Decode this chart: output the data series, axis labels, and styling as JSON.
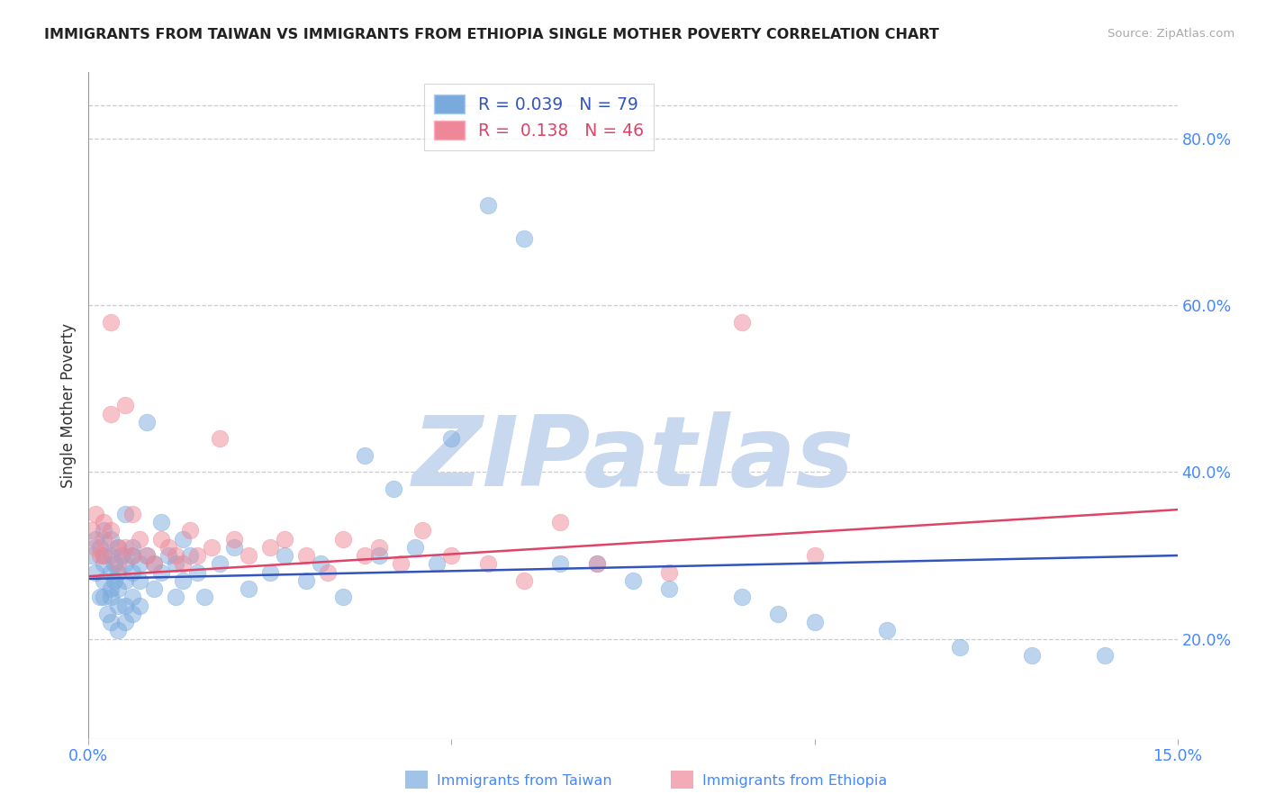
{
  "title": "IMMIGRANTS FROM TAIWAN VS IMMIGRANTS FROM ETHIOPIA SINGLE MOTHER POVERTY CORRELATION CHART",
  "source": "Source: ZipAtlas.com",
  "ylabel": "Single Mother Poverty",
  "legend_label_taiwan": "Immigrants from Taiwan",
  "legend_label_ethiopia": "Immigrants from Ethiopia",
  "r_taiwan": 0.039,
  "n_taiwan": 79,
  "r_ethiopia": 0.138,
  "n_ethiopia": 46,
  "xlim": [
    0.0,
    0.15
  ],
  "ylim": [
    0.08,
    0.88
  ],
  "yticks_right": [
    0.2,
    0.4,
    0.6,
    0.8
  ],
  "ytick_right_labels": [
    "20.0%",
    "40.0%",
    "60.0%",
    "80.0%"
  ],
  "color_taiwan": "#7aaadd",
  "color_ethiopia": "#ee8899",
  "color_taiwan_line": "#3355bb",
  "color_ethiopia_line": "#dd4466",
  "color_axis_labels": "#4488ff",
  "watermark": "ZIPatlas",
  "watermark_color": "#c8d8ee",
  "taiwan_x": [
    0.0005,
    0.001,
    0.001,
    0.0015,
    0.0015,
    0.002,
    0.002,
    0.002,
    0.002,
    0.002,
    0.0025,
    0.003,
    0.003,
    0.003,
    0.003,
    0.003,
    0.003,
    0.0035,
    0.0035,
    0.004,
    0.004,
    0.004,
    0.004,
    0.004,
    0.0045,
    0.005,
    0.005,
    0.005,
    0.005,
    0.005,
    0.006,
    0.006,
    0.006,
    0.006,
    0.006,
    0.007,
    0.007,
    0.007,
    0.008,
    0.008,
    0.009,
    0.009,
    0.01,
    0.01,
    0.011,
    0.012,
    0.012,
    0.013,
    0.013,
    0.014,
    0.015,
    0.016,
    0.018,
    0.02,
    0.022,
    0.025,
    0.027,
    0.03,
    0.032,
    0.035,
    0.038,
    0.04,
    0.042,
    0.045,
    0.048,
    0.05,
    0.055,
    0.06,
    0.065,
    0.07,
    0.075,
    0.08,
    0.09,
    0.095,
    0.1,
    0.11,
    0.12,
    0.13,
    0.14
  ],
  "taiwan_y": [
    0.3,
    0.28,
    0.32,
    0.25,
    0.31,
    0.27,
    0.33,
    0.25,
    0.29,
    0.3,
    0.23,
    0.26,
    0.28,
    0.3,
    0.22,
    0.25,
    0.32,
    0.27,
    0.29,
    0.24,
    0.26,
    0.28,
    0.31,
    0.21,
    0.3,
    0.24,
    0.27,
    0.29,
    0.22,
    0.35,
    0.28,
    0.25,
    0.3,
    0.23,
    0.31,
    0.27,
    0.29,
    0.24,
    0.3,
    0.46,
    0.29,
    0.26,
    0.28,
    0.34,
    0.3,
    0.25,
    0.29,
    0.27,
    0.32,
    0.3,
    0.28,
    0.25,
    0.29,
    0.31,
    0.26,
    0.28,
    0.3,
    0.27,
    0.29,
    0.25,
    0.42,
    0.3,
    0.38,
    0.31,
    0.29,
    0.44,
    0.72,
    0.68,
    0.29,
    0.29,
    0.27,
    0.26,
    0.25,
    0.23,
    0.22,
    0.21,
    0.19,
    0.18,
    0.18
  ],
  "ethiopia_x": [
    0.0005,
    0.001,
    0.001,
    0.0015,
    0.002,
    0.002,
    0.002,
    0.003,
    0.003,
    0.003,
    0.004,
    0.004,
    0.005,
    0.005,
    0.006,
    0.006,
    0.007,
    0.008,
    0.009,
    0.01,
    0.011,
    0.012,
    0.013,
    0.014,
    0.015,
    0.017,
    0.018,
    0.02,
    0.022,
    0.025,
    0.027,
    0.03,
    0.033,
    0.035,
    0.038,
    0.04,
    0.043,
    0.046,
    0.05,
    0.055,
    0.06,
    0.065,
    0.07,
    0.08,
    0.09,
    0.1
  ],
  "ethiopia_y": [
    0.33,
    0.31,
    0.35,
    0.3,
    0.32,
    0.34,
    0.3,
    0.33,
    0.47,
    0.58,
    0.31,
    0.29,
    0.48,
    0.31,
    0.3,
    0.35,
    0.32,
    0.3,
    0.29,
    0.32,
    0.31,
    0.3,
    0.29,
    0.33,
    0.3,
    0.31,
    0.44,
    0.32,
    0.3,
    0.31,
    0.32,
    0.3,
    0.28,
    0.32,
    0.3,
    0.31,
    0.29,
    0.33,
    0.3,
    0.29,
    0.27,
    0.34,
    0.29,
    0.28,
    0.58,
    0.3
  ]
}
